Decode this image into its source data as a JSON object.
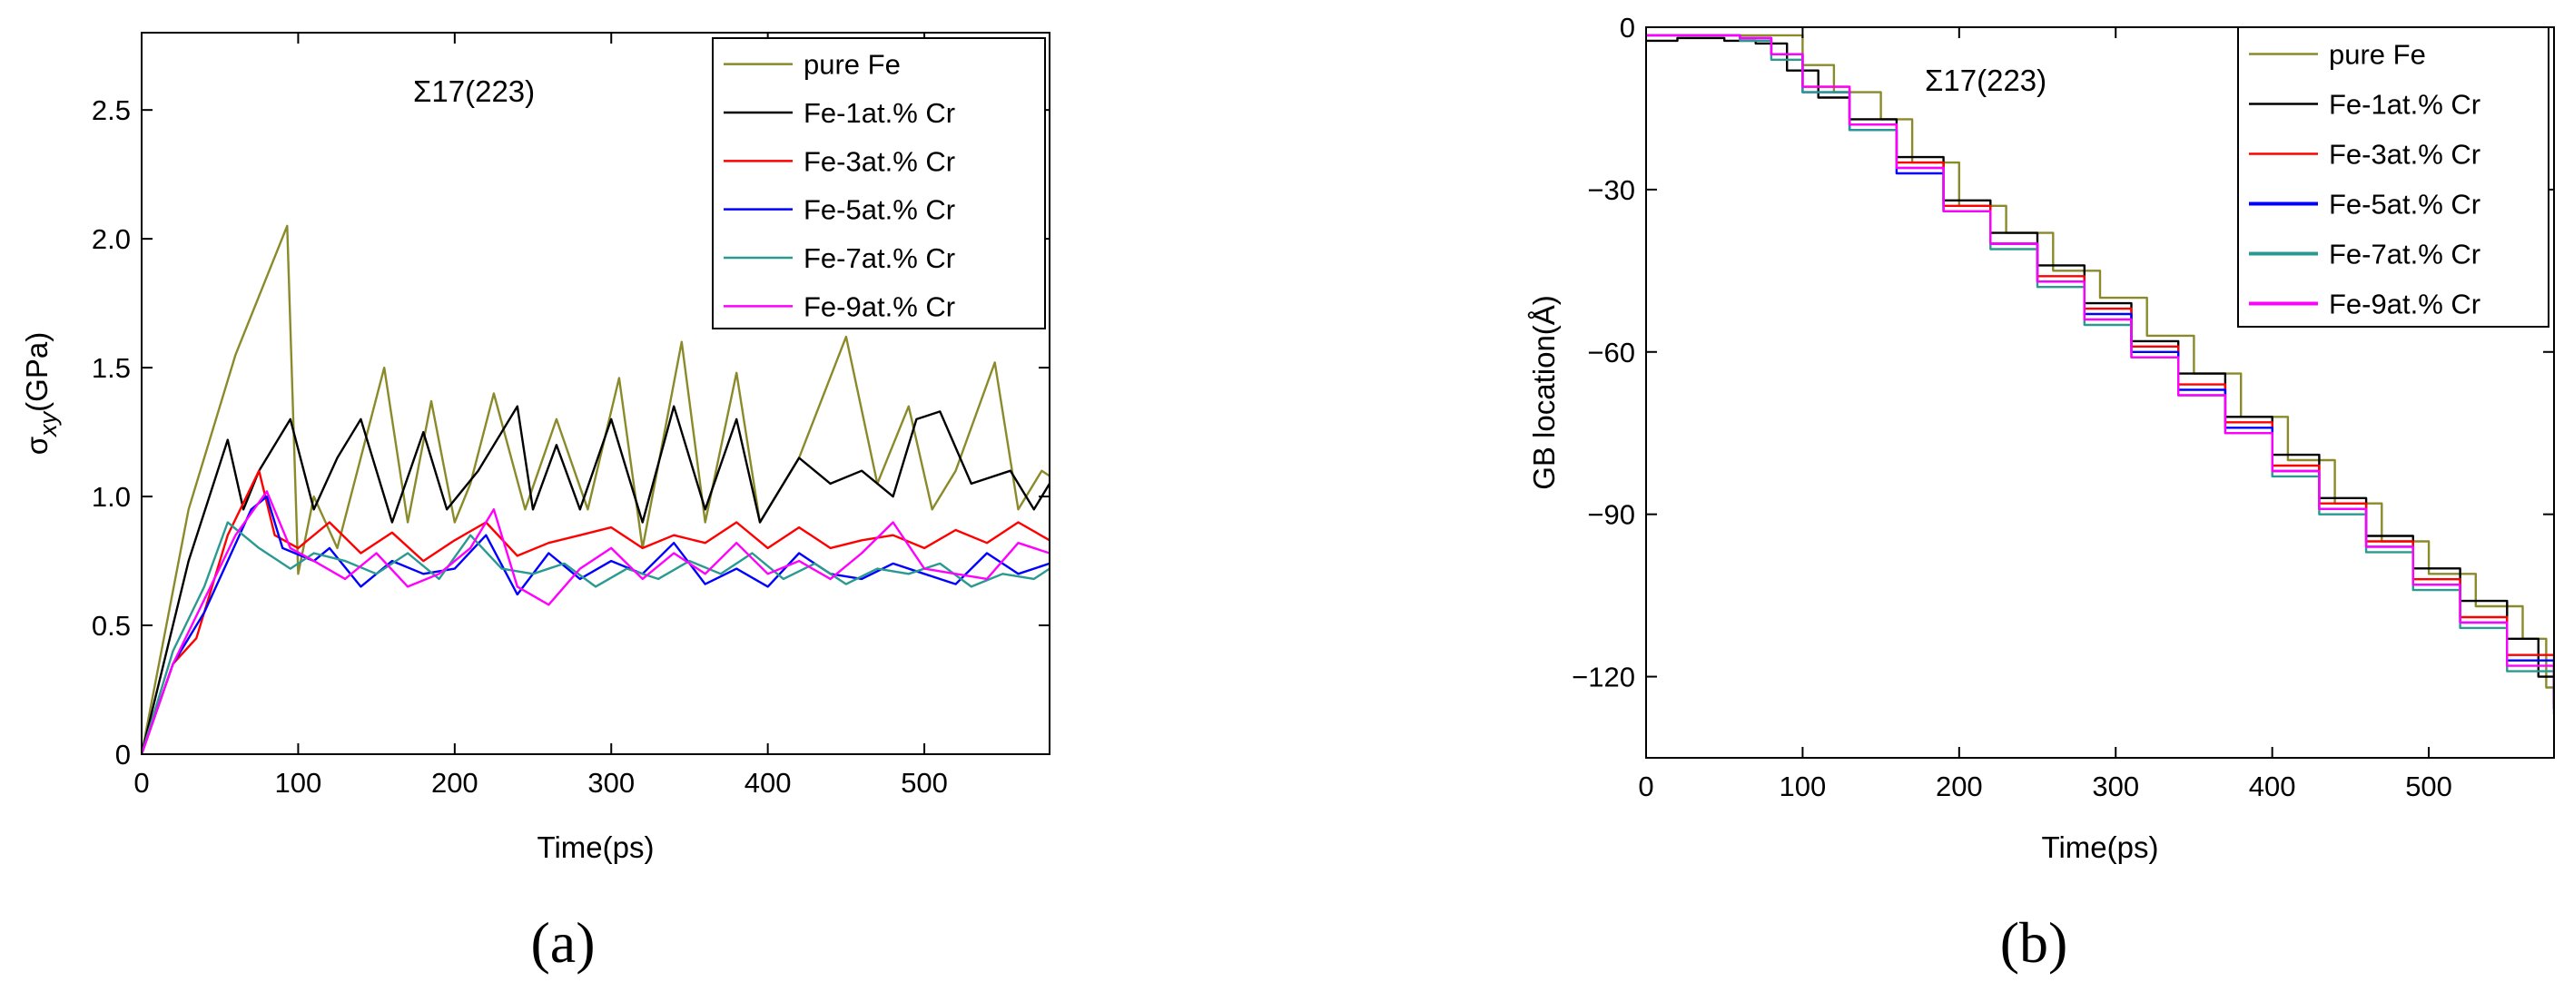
{
  "chart_data": [
    {
      "type": "line",
      "panel_label": "(a)",
      "annotation": "Σ17(223)",
      "xlabel": "Time(ps)",
      "ylabel_main": "σ",
      "ylabel_sub": "xy",
      "ylabel_rest": "(GPa)",
      "xlim": [
        0,
        580
      ],
      "ylim": [
        0,
        2.8
      ],
      "xticks": [
        0,
        100,
        200,
        300,
        400,
        500
      ],
      "xtick_labels": [
        "0",
        "100",
        "200",
        "300",
        "400",
        "500"
      ],
      "yticks": [
        0,
        0.5,
        1.0,
        1.5,
        2.0,
        2.5
      ],
      "ytick_labels": [
        "0",
        "0.5",
        "1.0",
        "1.5",
        "2.0",
        "2.5"
      ],
      "legend_position": "top-right",
      "series": [
        {
          "name": "pure Fe",
          "color": "#8a8a2a",
          "x": [
            0,
            30,
            60,
            93,
            100,
            110,
            125,
            155,
            170,
            185,
            200,
            210,
            225,
            245,
            265,
            285,
            305,
            320,
            345,
            360,
            380,
            395,
            420,
            450,
            470,
            490,
            505,
            520,
            545,
            560,
            575,
            580
          ],
          "y": [
            0,
            0.95,
            1.55,
            2.05,
            0.7,
            1.0,
            0.8,
            1.5,
            0.9,
            1.37,
            0.9,
            1.05,
            1.4,
            0.95,
            1.3,
            0.95,
            1.46,
            0.8,
            1.6,
            0.9,
            1.48,
            0.9,
            1.15,
            1.62,
            1.05,
            1.35,
            0.95,
            1.1,
            1.52,
            0.95,
            1.1,
            1.08
          ]
        },
        {
          "name": "Fe-1at.% Cr",
          "color": "#000000",
          "x": [
            0,
            30,
            55,
            65,
            75,
            95,
            110,
            125,
            140,
            160,
            180,
            195,
            215,
            240,
            250,
            265,
            280,
            300,
            320,
            340,
            360,
            380,
            395,
            420,
            440,
            460,
            480,
            495,
            510,
            530,
            555,
            570,
            580
          ],
          "y": [
            0,
            0.75,
            1.22,
            0.95,
            1.1,
            1.3,
            0.95,
            1.15,
            1.3,
            0.9,
            1.25,
            0.95,
            1.1,
            1.35,
            0.95,
            1.2,
            0.95,
            1.3,
            0.9,
            1.35,
            0.95,
            1.3,
            0.9,
            1.15,
            1.05,
            1.1,
            1.0,
            1.3,
            1.33,
            1.05,
            1.1,
            0.95,
            1.05
          ]
        },
        {
          "name": "Fe-3at.% Cr",
          "color": "#ff0000",
          "x": [
            0,
            20,
            35,
            55,
            75,
            85,
            100,
            120,
            140,
            160,
            180,
            200,
            220,
            240,
            260,
            280,
            300,
            320,
            340,
            360,
            380,
            400,
            420,
            440,
            460,
            480,
            500,
            520,
            540,
            560,
            580
          ],
          "y": [
            0,
            0.35,
            0.45,
            0.85,
            1.1,
            0.85,
            0.8,
            0.9,
            0.78,
            0.86,
            0.75,
            0.83,
            0.9,
            0.77,
            0.82,
            0.85,
            0.88,
            0.8,
            0.85,
            0.82,
            0.9,
            0.8,
            0.88,
            0.8,
            0.83,
            0.85,
            0.8,
            0.87,
            0.82,
            0.9,
            0.83
          ]
        },
        {
          "name": "Fe-5at.% Cr",
          "color": "#0000ff",
          "x": [
            0,
            20,
            40,
            70,
            80,
            90,
            110,
            120,
            140,
            160,
            180,
            200,
            220,
            240,
            260,
            280,
            300,
            320,
            340,
            360,
            380,
            400,
            420,
            440,
            460,
            480,
            500,
            520,
            540,
            560,
            580
          ],
          "y": [
            0,
            0.35,
            0.55,
            0.95,
            1.0,
            0.8,
            0.75,
            0.8,
            0.65,
            0.75,
            0.7,
            0.72,
            0.85,
            0.62,
            0.78,
            0.68,
            0.75,
            0.7,
            0.82,
            0.66,
            0.72,
            0.65,
            0.78,
            0.7,
            0.68,
            0.74,
            0.7,
            0.66,
            0.78,
            0.7,
            0.74
          ]
        },
        {
          "name": "Fe-7at.% Cr",
          "color": "#2a9a90",
          "x": [
            0,
            20,
            40,
            55,
            75,
            95,
            110,
            130,
            150,
            170,
            190,
            210,
            230,
            250,
            270,
            290,
            310,
            330,
            350,
            370,
            390,
            410,
            430,
            450,
            470,
            490,
            510,
            530,
            550,
            570,
            580
          ],
          "y": [
            0,
            0.4,
            0.65,
            0.9,
            0.8,
            0.72,
            0.78,
            0.75,
            0.7,
            0.78,
            0.68,
            0.85,
            0.72,
            0.7,
            0.74,
            0.65,
            0.72,
            0.68,
            0.75,
            0.7,
            0.78,
            0.68,
            0.74,
            0.66,
            0.72,
            0.7,
            0.74,
            0.65,
            0.7,
            0.68,
            0.72
          ]
        },
        {
          "name": "Fe-9at.% Cr",
          "color": "#ff00ff",
          "x": [
            0,
            20,
            40,
            60,
            80,
            95,
            110,
            130,
            150,
            170,
            190,
            210,
            225,
            240,
            260,
            280,
            300,
            320,
            340,
            360,
            380,
            400,
            420,
            440,
            460,
            480,
            500,
            520,
            540,
            560,
            580
          ],
          "y": [
            0,
            0.35,
            0.6,
            0.85,
            1.02,
            0.8,
            0.75,
            0.68,
            0.78,
            0.65,
            0.7,
            0.8,
            0.95,
            0.65,
            0.58,
            0.72,
            0.8,
            0.68,
            0.78,
            0.7,
            0.82,
            0.7,
            0.75,
            0.68,
            0.78,
            0.9,
            0.72,
            0.7,
            0.68,
            0.82,
            0.78
          ]
        }
      ]
    },
    {
      "type": "line",
      "panel_label": "(b)",
      "annotation": "Σ17(223)",
      "xlabel": "Time(ps)",
      "ylabel_main": "GB  location(Å)",
      "xlim": [
        0,
        580
      ],
      "ylim": [
        -135,
        0
      ],
      "xticks": [
        0,
        100,
        200,
        300,
        400,
        500
      ],
      "xtick_labels": [
        "0",
        "100",
        "200",
        "300",
        "400",
        "500"
      ],
      "yticks": [
        0,
        -30,
        -60,
        -90,
        -120
      ],
      "ytick_labels": [
        "0",
        "−30",
        "−60",
        "−90",
        "−120"
      ],
      "legend_position": "top-right",
      "series": [
        {
          "name": "pure Fe",
          "color": "#8a8a2a",
          "x": [
            0,
            30,
            60,
            90,
            100,
            120,
            150,
            170,
            200,
            230,
            260,
            290,
            320,
            350,
            380,
            410,
            440,
            470,
            500,
            530,
            560,
            575,
            580
          ],
          "y": [
            -1.5,
            -1.5,
            -1.5,
            -1.5,
            -7,
            -12,
            -17,
            -25,
            -33,
            -38,
            -45,
            -50,
            -57,
            -64,
            -72,
            -80,
            -88,
            -95,
            -101,
            -107,
            -113,
            -122,
            -125
          ]
        },
        {
          "name": "Fe-1at.% Cr",
          "color": "#000000",
          "x": [
            0,
            20,
            50,
            70,
            90,
            110,
            130,
            160,
            190,
            220,
            250,
            280,
            310,
            340,
            370,
            400,
            430,
            460,
            490,
            520,
            550,
            570,
            580
          ],
          "y": [
            -2.5,
            -2,
            -2.5,
            -3,
            -8,
            -13,
            -17,
            -24,
            -32,
            -38,
            -44,
            -51,
            -58,
            -64,
            -72,
            -79,
            -87,
            -94,
            -100,
            -106,
            -113,
            -120,
            -123
          ]
        },
        {
          "name": "Fe-3at.% Cr",
          "color": "#ff0000",
          "x": [
            0,
            30,
            60,
            80,
            100,
            130,
            160,
            190,
            220,
            250,
            280,
            310,
            340,
            370,
            400,
            430,
            460,
            490,
            520,
            550,
            580
          ],
          "y": [
            -1.5,
            -1.5,
            -2,
            -5,
            -11,
            -18,
            -25,
            -33,
            -40,
            -46,
            -52,
            -59,
            -66,
            -73,
            -81,
            -88,
            -95,
            -102,
            -109,
            -116,
            -125
          ]
        },
        {
          "name": "Fe-5at.% Cr",
          "color": "#0000ff",
          "x": [
            0,
            30,
            60,
            80,
            100,
            130,
            160,
            190,
            220,
            250,
            280,
            310,
            340,
            370,
            400,
            430,
            460,
            490,
            520,
            550,
            580
          ],
          "y": [
            -1.5,
            -1.5,
            -2,
            -5,
            -12,
            -19,
            -27,
            -34,
            -40,
            -47,
            -53,
            -60,
            -67,
            -74,
            -82,
            -89,
            -96,
            -103,
            -110,
            -117,
            -126
          ]
        },
        {
          "name": "Fe-7at.% Cr",
          "color": "#2a9a90",
          "x": [
            0,
            30,
            60,
            80,
            100,
            130,
            160,
            190,
            220,
            250,
            280,
            310,
            340,
            370,
            400,
            430,
            460,
            490,
            520,
            550,
            580
          ],
          "y": [
            -1.5,
            -1.5,
            -2.5,
            -6,
            -12,
            -19,
            -26,
            -34,
            -41,
            -48,
            -55,
            -61,
            -68,
            -75,
            -83,
            -90,
            -97,
            -104,
            -111,
            -119,
            -127
          ]
        },
        {
          "name": "Fe-9at.% Cr",
          "color": "#ff00ff",
          "x": [
            0,
            30,
            60,
            80,
            100,
            130,
            160,
            190,
            220,
            250,
            280,
            310,
            340,
            370,
            400,
            430,
            460,
            490,
            520,
            550,
            580
          ],
          "y": [
            -1.5,
            -1.5,
            -2,
            -5,
            -11,
            -18,
            -26,
            -34,
            -40,
            -47,
            -54,
            -61,
            -68,
            -75,
            -82,
            -89,
            -96,
            -103,
            -110,
            -118,
            -126
          ]
        }
      ]
    }
  ]
}
